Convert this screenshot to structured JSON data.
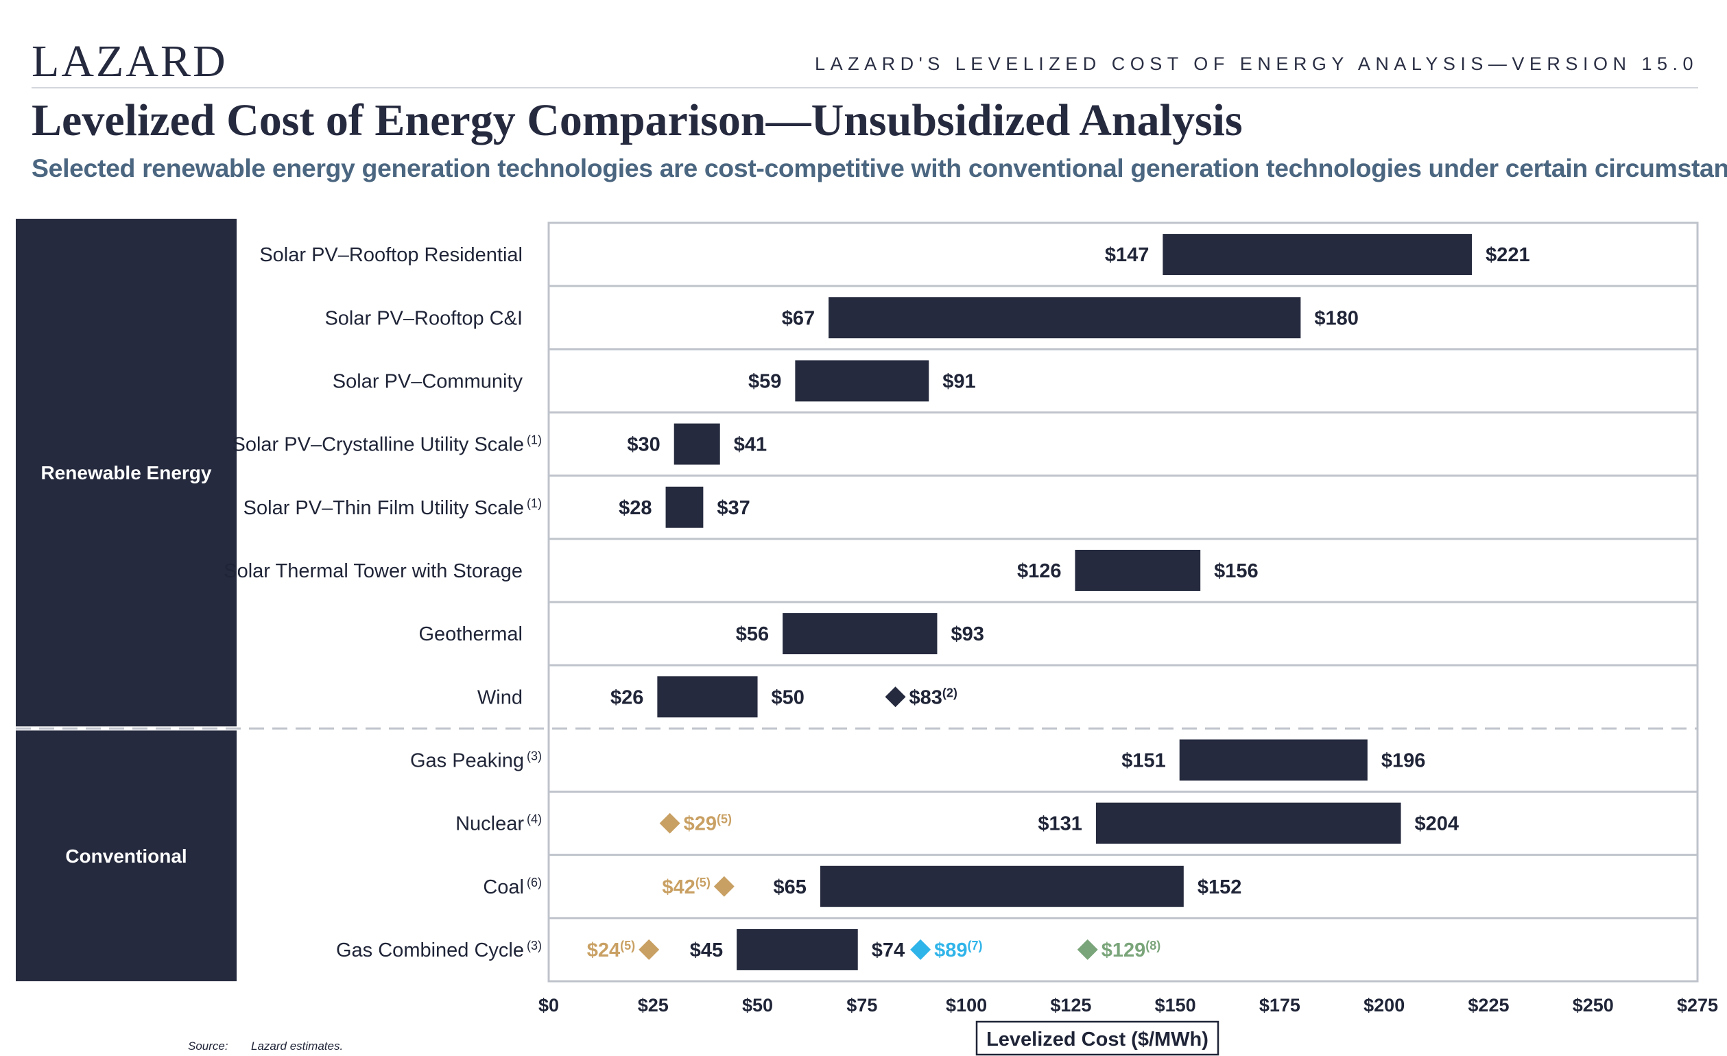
{
  "header": {
    "logo": "LAZARD",
    "right_title": "LAZARD'S LEVELIZED COST OF ENERGY ANALYSIS—VERSION 15.0",
    "title": "Levelized Cost of Energy Comparison—Unsubsidized Analysis",
    "subtitle": "Selected renewable energy generation technologies are cost-competitive with conventional generation technologies under certain circumstances"
  },
  "footer": {
    "source_label": "Source:",
    "source_text": "Lazard estimates."
  },
  "colors": {
    "bar": "#252a3e",
    "sidebar": "#252a3e",
    "gold": "#c9a063",
    "blue": "#2fb4e9",
    "green": "#7aa57a",
    "navy_marker": "#252a3e",
    "grid": "#bfc3cb"
  },
  "chart_data": {
    "type": "bar",
    "orientation": "horizontal-range",
    "xlabel": "Levelized Cost ($/MWh)",
    "xlim": [
      0,
      275
    ],
    "xticks": [
      0,
      25,
      50,
      75,
      100,
      125,
      150,
      175,
      200,
      225,
      250,
      275
    ],
    "xtick_labels": [
      "$0",
      "$25",
      "$50",
      "$75",
      "$100",
      "$125",
      "$150",
      "$175",
      "$200",
      "$225",
      "$250",
      "$275"
    ],
    "groups": [
      {
        "name": "Renewable Energy",
        "rows": [
          0,
          7
        ]
      },
      {
        "name": "Conventional",
        "rows": [
          8,
          11
        ]
      }
    ],
    "rows": [
      {
        "label": "Solar PV–Rooftop Residential",
        "note": "",
        "low": 147,
        "high": 221,
        "low_label": "$147",
        "high_label": "$221",
        "markers": []
      },
      {
        "label": "Solar PV–Rooftop C&I",
        "note": "",
        "low": 67,
        "high": 180,
        "low_label": "$67",
        "high_label": "$180",
        "markers": []
      },
      {
        "label": "Solar PV–Community",
        "note": "",
        "low": 59,
        "high": 91,
        "low_label": "$59",
        "high_label": "$91",
        "markers": []
      },
      {
        "label": "Solar PV–Crystalline Utility Scale",
        "note": "(1)",
        "low": 30,
        "high": 41,
        "low_label": "$30",
        "high_label": "$41",
        "markers": []
      },
      {
        "label": "Solar PV–Thin Film Utility Scale",
        "note": "(1)",
        "low": 28,
        "high": 37,
        "low_label": "$28",
        "high_label": "$37",
        "markers": []
      },
      {
        "label": "Solar Thermal Tower with Storage",
        "note": "",
        "low": 126,
        "high": 156,
        "low_label": "$126",
        "high_label": "$156",
        "markers": []
      },
      {
        "label": "Geothermal",
        "note": "",
        "low": 56,
        "high": 93,
        "low_label": "$56",
        "high_label": "$93",
        "markers": []
      },
      {
        "label": "Wind",
        "note": "",
        "low": 26,
        "high": 50,
        "low_label": "$26",
        "high_label": "$50",
        "markers": [
          {
            "value": 83,
            "label": "$83",
            "note": "(2)",
            "color": "navy",
            "label_side": "right"
          }
        ]
      },
      {
        "label": "Gas Peaking",
        "note": "(3)",
        "low": 151,
        "high": 196,
        "low_label": "$151",
        "high_label": "$196",
        "markers": []
      },
      {
        "label": "Nuclear",
        "note": "(4)",
        "low": 131,
        "high": 204,
        "low_label": "$131",
        "high_label": "$204",
        "markers": [
          {
            "value": 29,
            "label": "$29",
            "note": "(5)",
            "color": "gold",
            "label_side": "right"
          }
        ]
      },
      {
        "label": "Coal",
        "note": "(6)",
        "low": 65,
        "high": 152,
        "low_label": "$65",
        "high_label": "$152",
        "markers": [
          {
            "value": 42,
            "label": "$42",
            "note": "(5)",
            "color": "gold",
            "label_side": "left"
          }
        ]
      },
      {
        "label": "Gas Combined Cycle",
        "note": "(3)",
        "low": 45,
        "high": 74,
        "low_label": "$45",
        "high_label": "$74",
        "markers": [
          {
            "value": 24,
            "label": "$24",
            "note": "(5)",
            "color": "gold",
            "label_side": "left"
          },
          {
            "value": 89,
            "label": "$89",
            "note": "(7)",
            "color": "blue",
            "label_side": "right"
          },
          {
            "value": 129,
            "label": "$129",
            "note": "(8)",
            "color": "green",
            "label_side": "right"
          }
        ]
      }
    ]
  }
}
